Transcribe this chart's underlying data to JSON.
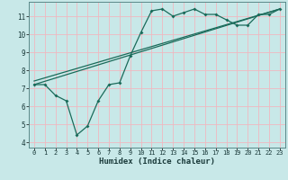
{
  "bg_color": "#c8e8e8",
  "grid_color": "#f0b8c0",
  "line_color": "#1a6b5a",
  "xlabel": "Humidex (Indice chaleur)",
  "xlim": [
    -0.5,
    23.5
  ],
  "ylim": [
    3.7,
    11.8
  ],
  "yticks": [
    4,
    5,
    6,
    7,
    8,
    9,
    10,
    11
  ],
  "xticks": [
    0,
    1,
    2,
    3,
    4,
    5,
    6,
    7,
    8,
    9,
    10,
    11,
    12,
    13,
    14,
    15,
    16,
    17,
    18,
    19,
    20,
    21,
    22,
    23
  ],
  "line1_x": [
    0,
    1,
    2,
    3,
    4,
    5,
    6,
    7,
    8,
    9,
    10,
    11,
    12,
    13,
    14,
    15,
    16,
    17,
    18,
    19,
    20,
    21,
    22,
    23
  ],
  "line1_y": [
    7.2,
    7.2,
    6.6,
    6.3,
    4.4,
    4.9,
    6.3,
    7.2,
    7.3,
    8.8,
    10.1,
    11.3,
    11.4,
    11.0,
    11.2,
    11.4,
    11.1,
    11.1,
    10.8,
    10.5,
    10.5,
    11.1,
    11.1,
    11.4
  ],
  "line2_x": [
    0,
    23
  ],
  "line2_y": [
    7.2,
    11.4
  ],
  "line3_x": [
    0,
    23
  ],
  "line3_y": [
    7.4,
    11.4
  ],
  "xlabel_fontsize": 6.5,
  "tick_fontsize_x": 5.0,
  "tick_fontsize_y": 5.5
}
